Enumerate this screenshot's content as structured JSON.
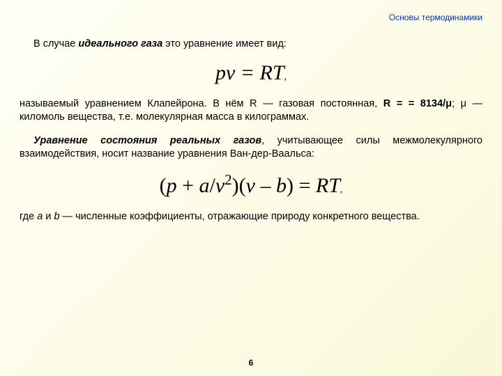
{
  "header": "Основы термодинамики",
  "para1_prefix": "В случае ",
  "para1_em": "идеального газа",
  "para1_suffix": " это уравнение имеет вид:",
  "eq1": "pv = RT",
  "eq1_comma": ",",
  "para2_a": "называемый уравнением Клапейрона. В нём R — газовая постоянная, ",
  "para2_b": "R = = 8134/μ",
  "para2_c": "; μ — киломоль вещества, т.е. молекулярная масса в килограммах.",
  "para3_em": "Уравнение состояния реальных газов",
  "para3_rest": ", учитывающее силы межмолеку­лярного взаимодействия, носит название уравнения Ван-дер-Ваальса:",
  "eq2_html": "(<i>p</i> + <i>a</i>/<i>v</i><sup>2</sup>)(<i>v</i> – <i>b</i>) = <i>RT</i>",
  "eq2_comma": ",",
  "para4_a": "где ",
  "para4_b": "a",
  "para4_c": " и ",
  "para4_d": "b",
  "para4_e": " — численные коэффициенты, отражающие природу конкретного вещества.",
  "page_number": "6"
}
